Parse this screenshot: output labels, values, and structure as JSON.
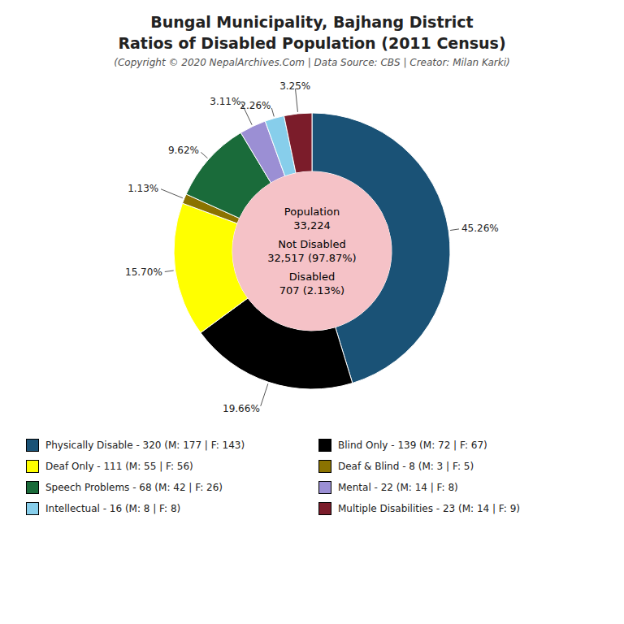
{
  "chart_data": {
    "type": "pie",
    "title": "Bungal Municipality, Bajhang District\nRatios of Disabled Population (2011 Census)",
    "subtitle": "(Copyright © 2020 NepalArchives.Com | Data Source: CBS | Creator: Milan Karki)",
    "categories": [
      "Physically Disable - 320 (M: 177 | F: 143)",
      "Blind Only - 139 (M: 72 | F: 67)",
      "Deaf Only - 111 (M: 55 | F: 56)",
      "Deaf & Blind - 8 (M: 3 | F: 5)",
      "Speech Problems - 68 (M: 42 | F: 26)",
      "Mental - 22 (M: 14 | F: 8)",
      "Intellectual - 16 (M: 8 | F: 8)",
      "Multiple Disabilities - 23 (M: 14 | F: 9)"
    ],
    "values": [
      45.26,
      19.66,
      15.7,
      1.13,
      9.62,
      3.11,
      2.26,
      3.25
    ],
    "value_labels": [
      "45.26%",
      "19.66%",
      "15.70%",
      "1.13%",
      "9.62%",
      "3.11%",
      "2.26%",
      "3.25%"
    ],
    "colors": [
      "#1a5276",
      "#000000",
      "#ffff00",
      "#8b7300",
      "#1a6b3a",
      "#9b8fd4",
      "#87ceeb",
      "#7b1c2a"
    ],
    "annotations": [
      "Population\n33,224",
      "Not Disabled\n32,517 (97.87%)",
      "Disabled\n707 (2.13%)"
    ],
    "data_labels": true,
    "legend": "bottom"
  }
}
